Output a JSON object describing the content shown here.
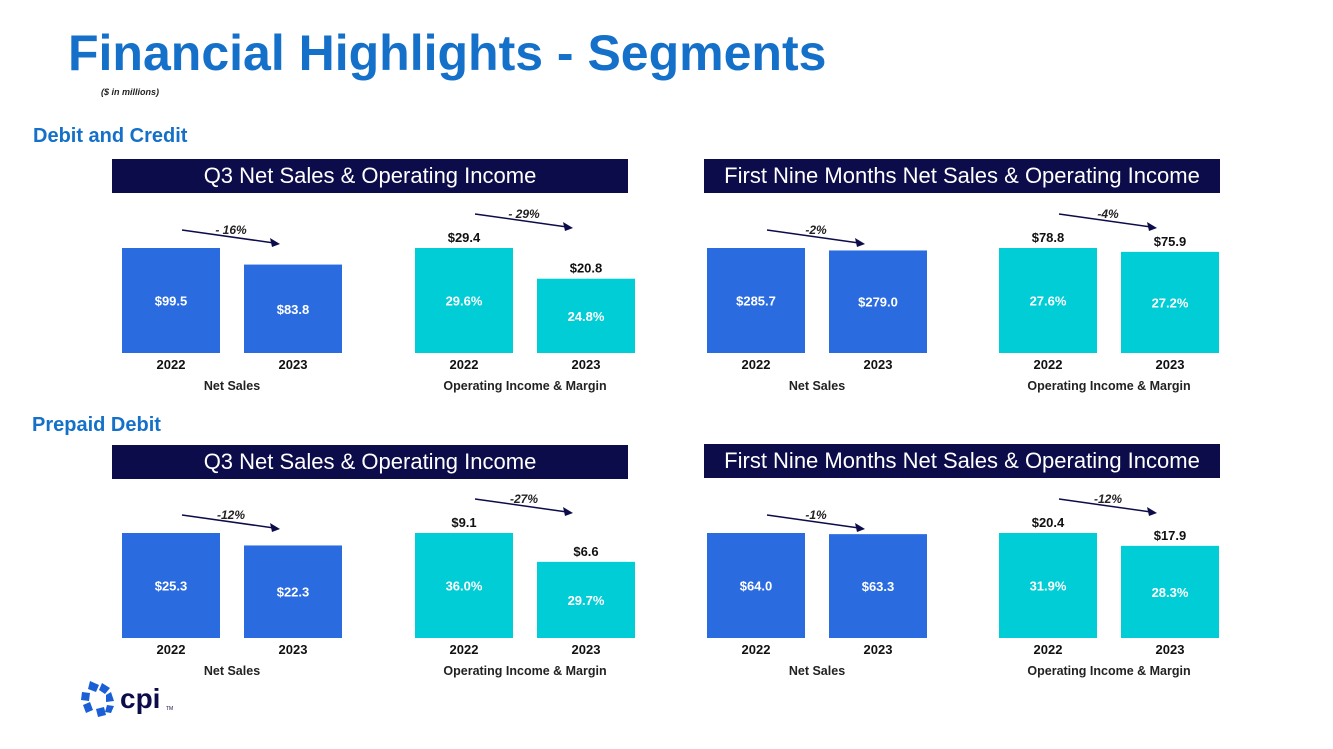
{
  "page": {
    "title": "Financial Highlights - Segments",
    "subtitle": "($ in millions)"
  },
  "sections": {
    "debit_credit": "Debit and Credit",
    "prepaid_debit": "Prepaid Debit"
  },
  "banners": {
    "dc_q3": "Q3 Net Sales & Operating Income",
    "dc_nine": "First Nine Months Net Sales & Operating Income",
    "pd_q3": "Q3 Net Sales & Operating Income",
    "pd_nine": "First Nine Months Net Sales & Operating Income"
  },
  "logo": {
    "text": "cpi",
    "tm": "TM"
  },
  "colors": {
    "netSales": "#2a6be0",
    "opIncome": "#00cdd6",
    "banner": "#0d0c4a",
    "title": "#1470c8",
    "arrow": "#0d0c4a"
  },
  "chart_data": [
    {
      "id": "dc_q3_ns",
      "type": "bar",
      "label": "Net Sales",
      "categories": [
        "2022",
        "2023"
      ],
      "values": [
        99.5,
        83.8
      ],
      "bar_labels": [
        "$99.5",
        "$83.8"
      ],
      "top_labels": [
        "",
        ""
      ],
      "change": "- 16%",
      "color": "netSales"
    },
    {
      "id": "dc_q3_oi",
      "type": "bar",
      "label": "Operating Income & Margin",
      "categories": [
        "2022",
        "2023"
      ],
      "values": [
        29.4,
        20.8
      ],
      "bar_labels": [
        "29.6%",
        "24.8%"
      ],
      "top_labels": [
        "$29.4",
        "$20.8"
      ],
      "change": "- 29%",
      "color": "opIncome"
    },
    {
      "id": "dc_nine_ns",
      "type": "bar",
      "label": "Net Sales",
      "categories": [
        "2022",
        "2023"
      ],
      "values": [
        285.7,
        279.0
      ],
      "bar_labels": [
        "$285.7",
        "$279.0"
      ],
      "top_labels": [
        "",
        ""
      ],
      "change": "-2%",
      "color": "netSales"
    },
    {
      "id": "dc_nine_oi",
      "type": "bar",
      "label": "Operating Income & Margin",
      "categories": [
        "2022",
        "2023"
      ],
      "values": [
        78.8,
        75.9
      ],
      "bar_labels": [
        "27.6%",
        "27.2%"
      ],
      "top_labels": [
        "$78.8",
        "$75.9"
      ],
      "change": "-4%",
      "color": "opIncome"
    },
    {
      "id": "pd_q3_ns",
      "type": "bar",
      "label": "Net Sales",
      "categories": [
        "2022",
        "2023"
      ],
      "values": [
        25.3,
        22.3
      ],
      "bar_labels": [
        "$25.3",
        "$22.3"
      ],
      "top_labels": [
        "",
        ""
      ],
      "change": "-12%",
      "color": "netSales"
    },
    {
      "id": "pd_q3_oi",
      "type": "bar",
      "label": "Operating Income & Margin",
      "categories": [
        "2022",
        "2023"
      ],
      "values": [
        9.1,
        6.6
      ],
      "bar_labels": [
        "36.0%",
        "29.7%"
      ],
      "top_labels": [
        "$9.1",
        "$6.6"
      ],
      "change": "-27%",
      "color": "opIncome"
    },
    {
      "id": "pd_nine_ns",
      "type": "bar",
      "label": "Net Sales",
      "categories": [
        "2022",
        "2023"
      ],
      "values": [
        64.0,
        63.3
      ],
      "bar_labels": [
        "$64.0",
        "$63.3"
      ],
      "top_labels": [
        "",
        ""
      ],
      "change": "-1%",
      "color": "netSales"
    },
    {
      "id": "pd_nine_oi",
      "type": "bar",
      "label": "Operating Income & Margin",
      "categories": [
        "2022",
        "2023"
      ],
      "values": [
        20.4,
        17.9
      ],
      "bar_labels": [
        "31.9%",
        "28.3%"
      ],
      "top_labels": [
        "$20.4",
        "$17.9"
      ],
      "change": "-12%",
      "color": "opIncome"
    }
  ]
}
